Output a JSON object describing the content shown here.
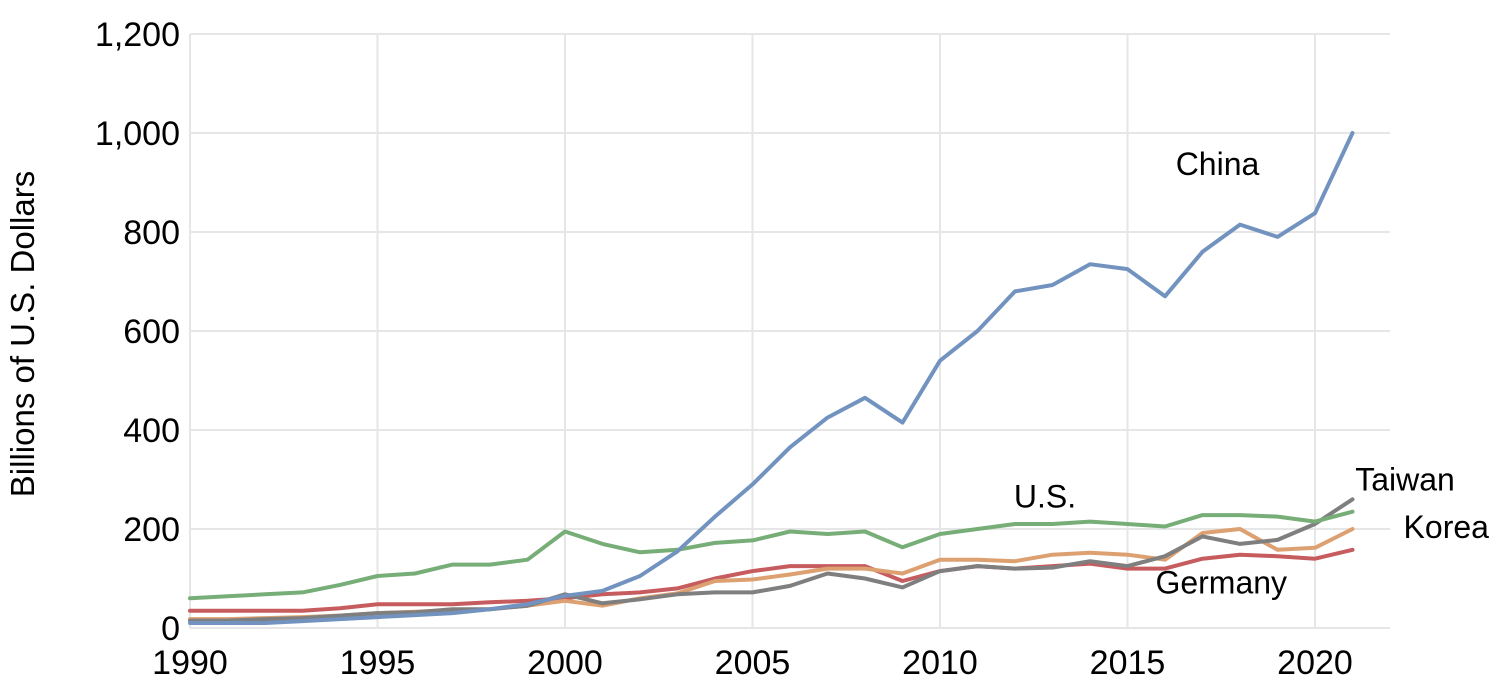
{
  "chart_data": {
    "type": "line",
    "title": "",
    "xlabel": "",
    "ylabel": "Billions of U.S. Dollars",
    "xlim": [
      1990,
      2022
    ],
    "ylim": [
      0,
      1200
    ],
    "x_ticks": [
      "1990",
      "1995",
      "2000",
      "2005",
      "2010",
      "2015",
      "2020"
    ],
    "y_ticks": [
      "0",
      "200",
      "400",
      "600",
      "800",
      "1,000",
      "1,200"
    ],
    "grid": {
      "vertical": true,
      "horizontal": true
    },
    "legend": "none (direct labels on series)",
    "x": [
      1990,
      1991,
      1992,
      1993,
      1994,
      1995,
      1996,
      1997,
      1998,
      1999,
      2000,
      2001,
      2002,
      2003,
      2004,
      2005,
      2006,
      2007,
      2008,
      2009,
      2010,
      2011,
      2012,
      2013,
      2014,
      2015,
      2016,
      2017,
      2018,
      2019,
      2020,
      2021
    ],
    "series": [
      {
        "name": "China",
        "color": "#7293bf",
        "values": [
          10,
          10,
          10,
          14,
          18,
          22,
          26,
          30,
          38,
          48,
          65,
          75,
          105,
          155,
          225,
          290,
          365,
          425,
          465,
          415,
          540,
          600,
          680,
          693,
          735,
          725,
          670,
          760,
          815,
          790,
          838,
          1000
        ]
      },
      {
        "name": "U.S.",
        "color": "#77ae78",
        "values": [
          60,
          64,
          68,
          72,
          87,
          105,
          110,
          128,
          128,
          138,
          195,
          170,
          153,
          158,
          172,
          177,
          195,
          190,
          195,
          163,
          190,
          200,
          210,
          210,
          215,
          210,
          205,
          228,
          228,
          225,
          215,
          235
        ]
      },
      {
        "name": "Taiwan",
        "color": "#7f7f7f",
        "values": [
          15,
          15,
          18,
          20,
          25,
          30,
          32,
          38,
          38,
          45,
          68,
          50,
          58,
          68,
          72,
          72,
          85,
          110,
          100,
          82,
          115,
          125,
          120,
          122,
          135,
          125,
          145,
          185,
          170,
          178,
          210,
          260
        ]
      },
      {
        "name": "Korea",
        "color": "#dca071",
        "values": [
          18,
          18,
          20,
          22,
          25,
          30,
          33,
          36,
          38,
          45,
          55,
          45,
          60,
          70,
          95,
          98,
          108,
          120,
          120,
          110,
          138,
          138,
          135,
          148,
          152,
          148,
          138,
          192,
          200,
          158,
          162,
          200
        ]
      },
      {
        "name": "Germany",
        "color": "#c75c5f",
        "values": [
          35,
          35,
          35,
          35,
          40,
          48,
          48,
          48,
          52,
          55,
          60,
          68,
          72,
          80,
          100,
          115,
          125,
          125,
          125,
          95,
          115,
          125,
          120,
          125,
          130,
          120,
          120,
          140,
          148,
          145,
          140,
          158
        ]
      }
    ],
    "annotations": [
      {
        "text": "China",
        "series": "China"
      },
      {
        "text": "U.S.",
        "series": "U.S."
      },
      {
        "text": "Taiwan",
        "series": "Taiwan"
      },
      {
        "text": "Korea",
        "series": "Korea"
      },
      {
        "text": "Germany",
        "series": "Germany"
      }
    ]
  }
}
